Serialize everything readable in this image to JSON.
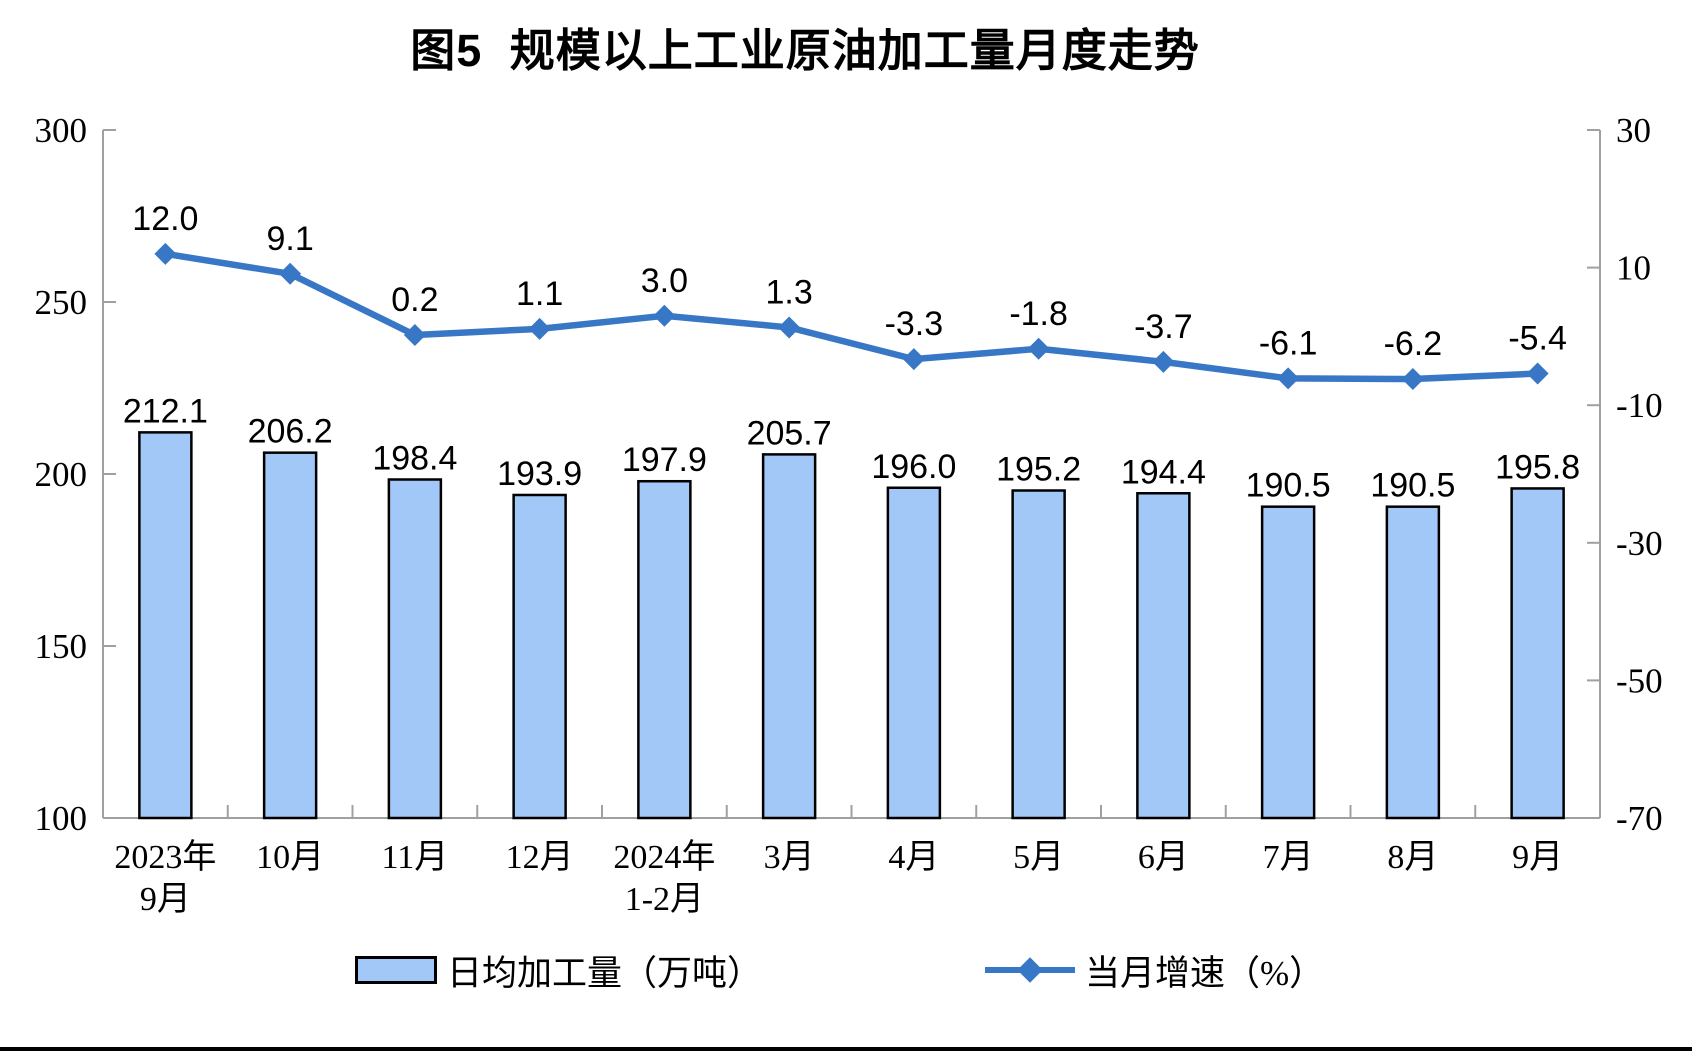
{
  "chart_data": {
    "type": "combo-bar-line",
    "title": "图5 规模以上工业原油加工量月度走势",
    "categories": [
      [
        "2023年",
        "9月"
      ],
      [
        "10月"
      ],
      [
        "11月"
      ],
      [
        "12月"
      ],
      [
        "2024年",
        "1-2月"
      ],
      [
        "3月"
      ],
      [
        "4月"
      ],
      [
        "5月"
      ],
      [
        "6月"
      ],
      [
        "7月"
      ],
      [
        "8月"
      ],
      [
        "9月"
      ]
    ],
    "series": [
      {
        "name": "日均加工量（万吨）",
        "type": "bar",
        "axis": "left",
        "values": [
          212.1,
          206.2,
          198.4,
          193.9,
          197.9,
          205.7,
          196.0,
          195.2,
          194.4,
          190.5,
          190.5,
          195.8
        ]
      },
      {
        "name": "当月增速（%）",
        "type": "line",
        "axis": "right",
        "values": [
          12.0,
          9.1,
          0.2,
          1.1,
          3.0,
          1.3,
          -3.3,
          -1.8,
          -3.7,
          -6.1,
          -6.2,
          -5.4
        ]
      }
    ],
    "left_axis": {
      "min": 100,
      "max": 300,
      "ticks": [
        300,
        250,
        200,
        150,
        100
      ]
    },
    "right_axis": {
      "min": -70,
      "max": 30,
      "ticks": [
        30,
        10,
        -10,
        -30,
        -50,
        -70
      ]
    },
    "grid": false,
    "legend_position": "bottom",
    "colors": {
      "bar_fill": "#A2C8F8",
      "bar_border": "#000000",
      "line": "#3877C5",
      "axis": "#A0A0A0",
      "text": "#000000"
    }
  }
}
